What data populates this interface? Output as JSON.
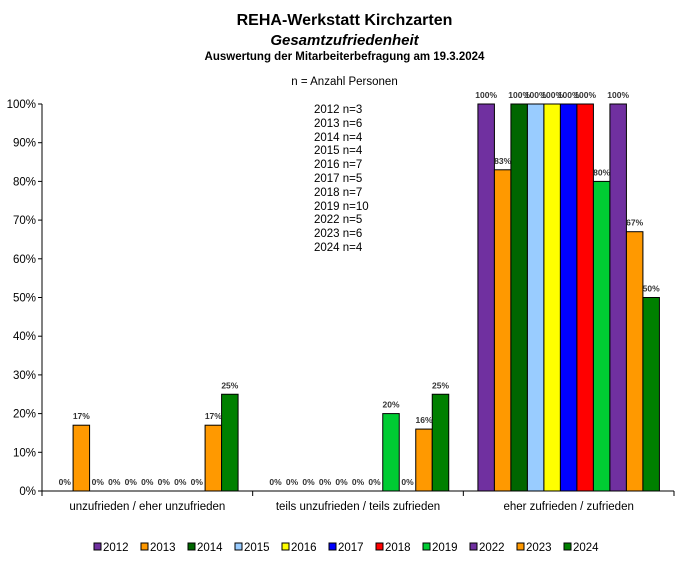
{
  "title": "REHA-Werkstatt Kirchzarten",
  "subtitle": "Gesamtzufriedenheit",
  "subtitle2": "Auswertung der Mitarbeiterbefragung am 19.3.2024",
  "note": "n = Anzahl Personen",
  "n_counts": [
    "2012 n=3",
    "2013 n=6",
    "2014 n=4",
    "2015 n=4",
    "2016 n=7",
    "2017 n=5",
    "2018 n=7",
    "2019 n=10",
    "2022 n=5",
    "2023 n=6",
    "2024 n=4"
  ],
  "chart_data": {
    "type": "bar",
    "title": "REHA-Werkstatt Kirchzarten",
    "xlabel": "",
    "ylabel": "",
    "ylim": [
      0,
      100
    ],
    "y_ticks": [
      "0%",
      "10%",
      "20%",
      "30%",
      "40%",
      "50%",
      "60%",
      "70%",
      "80%",
      "90%",
      "100%"
    ],
    "grid": false,
    "legend_position": "bottom",
    "categories": [
      "unzufrieden / eher unzufrieden",
      "teils unzufrieden / teils zufrieden",
      "eher zufrieden / zufrieden"
    ],
    "series": [
      {
        "name": "2012",
        "color": "#7030A0",
        "values": [
          0,
          0,
          100
        ]
      },
      {
        "name": "2013",
        "color": "#FF9900",
        "values": [
          17,
          0,
          83
        ]
      },
      {
        "name": "2014",
        "color": "#006600",
        "values": [
          0,
          0,
          100
        ]
      },
      {
        "name": "2015",
        "color": "#99CCFF",
        "values": [
          0,
          0,
          100
        ]
      },
      {
        "name": "2016",
        "color": "#FFFF00",
        "values": [
          0,
          0,
          100
        ]
      },
      {
        "name": "2017",
        "color": "#0000FF",
        "values": [
          0,
          0,
          100
        ]
      },
      {
        "name": "2018",
        "color": "#FF0000",
        "values": [
          0,
          0,
          100
        ]
      },
      {
        "name": "2019",
        "color": "#00CC33",
        "values": [
          0,
          20,
          80
        ]
      },
      {
        "name": "2022",
        "color": "#7030A0",
        "values": [
          0,
          0,
          100
        ]
      },
      {
        "name": "2023",
        "color": "#FF9900",
        "values": [
          17,
          16,
          67
        ]
      },
      {
        "name": "2024",
        "color": "#008000",
        "values": [
          25,
          25,
          50
        ]
      }
    ],
    "data_labels": [
      [
        "0%",
        "17%",
        "0%",
        "0%",
        "0%",
        "0%",
        "0%",
        "0%",
        "0%",
        "17%",
        "25%"
      ],
      [
        "0%",
        "0%",
        "0%",
        "0%",
        "0%",
        "0%",
        "0%",
        "20%",
        "0%",
        "16%",
        "25%"
      ],
      [
        "100%",
        "83%",
        "100%",
        "100%",
        "100%",
        "100%",
        "100%",
        "80%",
        "100%",
        "67%",
        "50%"
      ]
    ]
  }
}
